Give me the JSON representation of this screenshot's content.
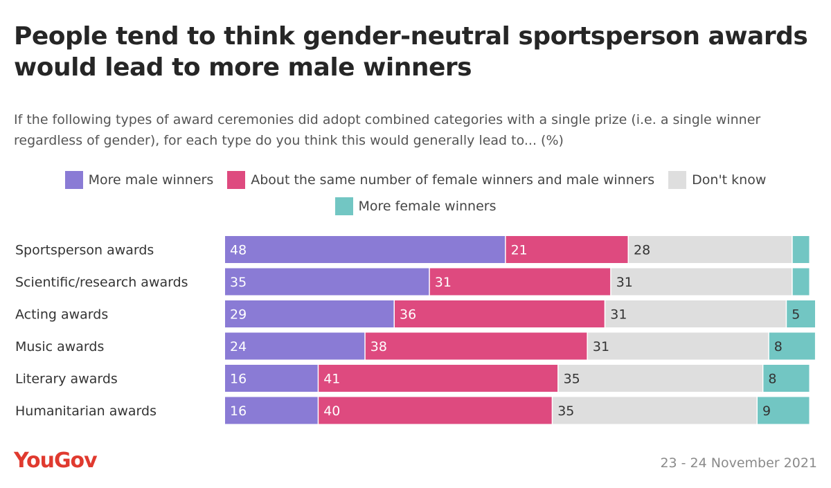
{
  "header": {
    "title": "People tend to think gender-neutral sportsperson awards would lead to more male winners",
    "subtitle": "If the following types of award ceremonies did adopt combined categories with a single prize (i.e. a single winner regardless of gender), for each type do you think this would generally lead to... (%)"
  },
  "footer": {
    "brand": "YouGov",
    "date": "23 - 24 November 2021"
  },
  "colors": {
    "more_male": "#8a7bd5",
    "same": "#de4a7f",
    "dont_know": "#dedede",
    "more_female": "#72c6c3",
    "label_on_dark": "#ffffff",
    "label_on_light": "#333333"
  },
  "chart_data": {
    "type": "bar",
    "orientation": "horizontal",
    "stacked": true,
    "categories": [
      "Sportsperson awards",
      "Scientific/research awards",
      "Acting awards",
      "Music awards",
      "Literary awards",
      "Humanitarian awards"
    ],
    "series": [
      {
        "name": "More male winners",
        "color": "#8a7bd5",
        "values": [
          48,
          35,
          29,
          24,
          16,
          16
        ],
        "labels": [
          "48",
          "35",
          "29",
          "24",
          "16",
          "16"
        ]
      },
      {
        "name": "About the same number of female winners and male winners",
        "color": "#de4a7f",
        "values": [
          21,
          31,
          36,
          38,
          41,
          40
        ],
        "labels": [
          "21",
          "31",
          "36",
          "38",
          "41",
          "40"
        ]
      },
      {
        "name": "Don't know",
        "color": "#dedede",
        "values": [
          28,
          31,
          31,
          31,
          35,
          35
        ],
        "labels": [
          "28",
          "31",
          "31",
          "31",
          "35",
          "35"
        ]
      },
      {
        "name": "More female winners",
        "color": "#72c6c3",
        "values": [
          3,
          3,
          5,
          8,
          8,
          9
        ],
        "labels": [
          "",
          "",
          "5",
          "8",
          "8",
          "9"
        ]
      }
    ],
    "xlim": [
      0,
      100
    ],
    "legend_position": "top",
    "grid": false
  }
}
